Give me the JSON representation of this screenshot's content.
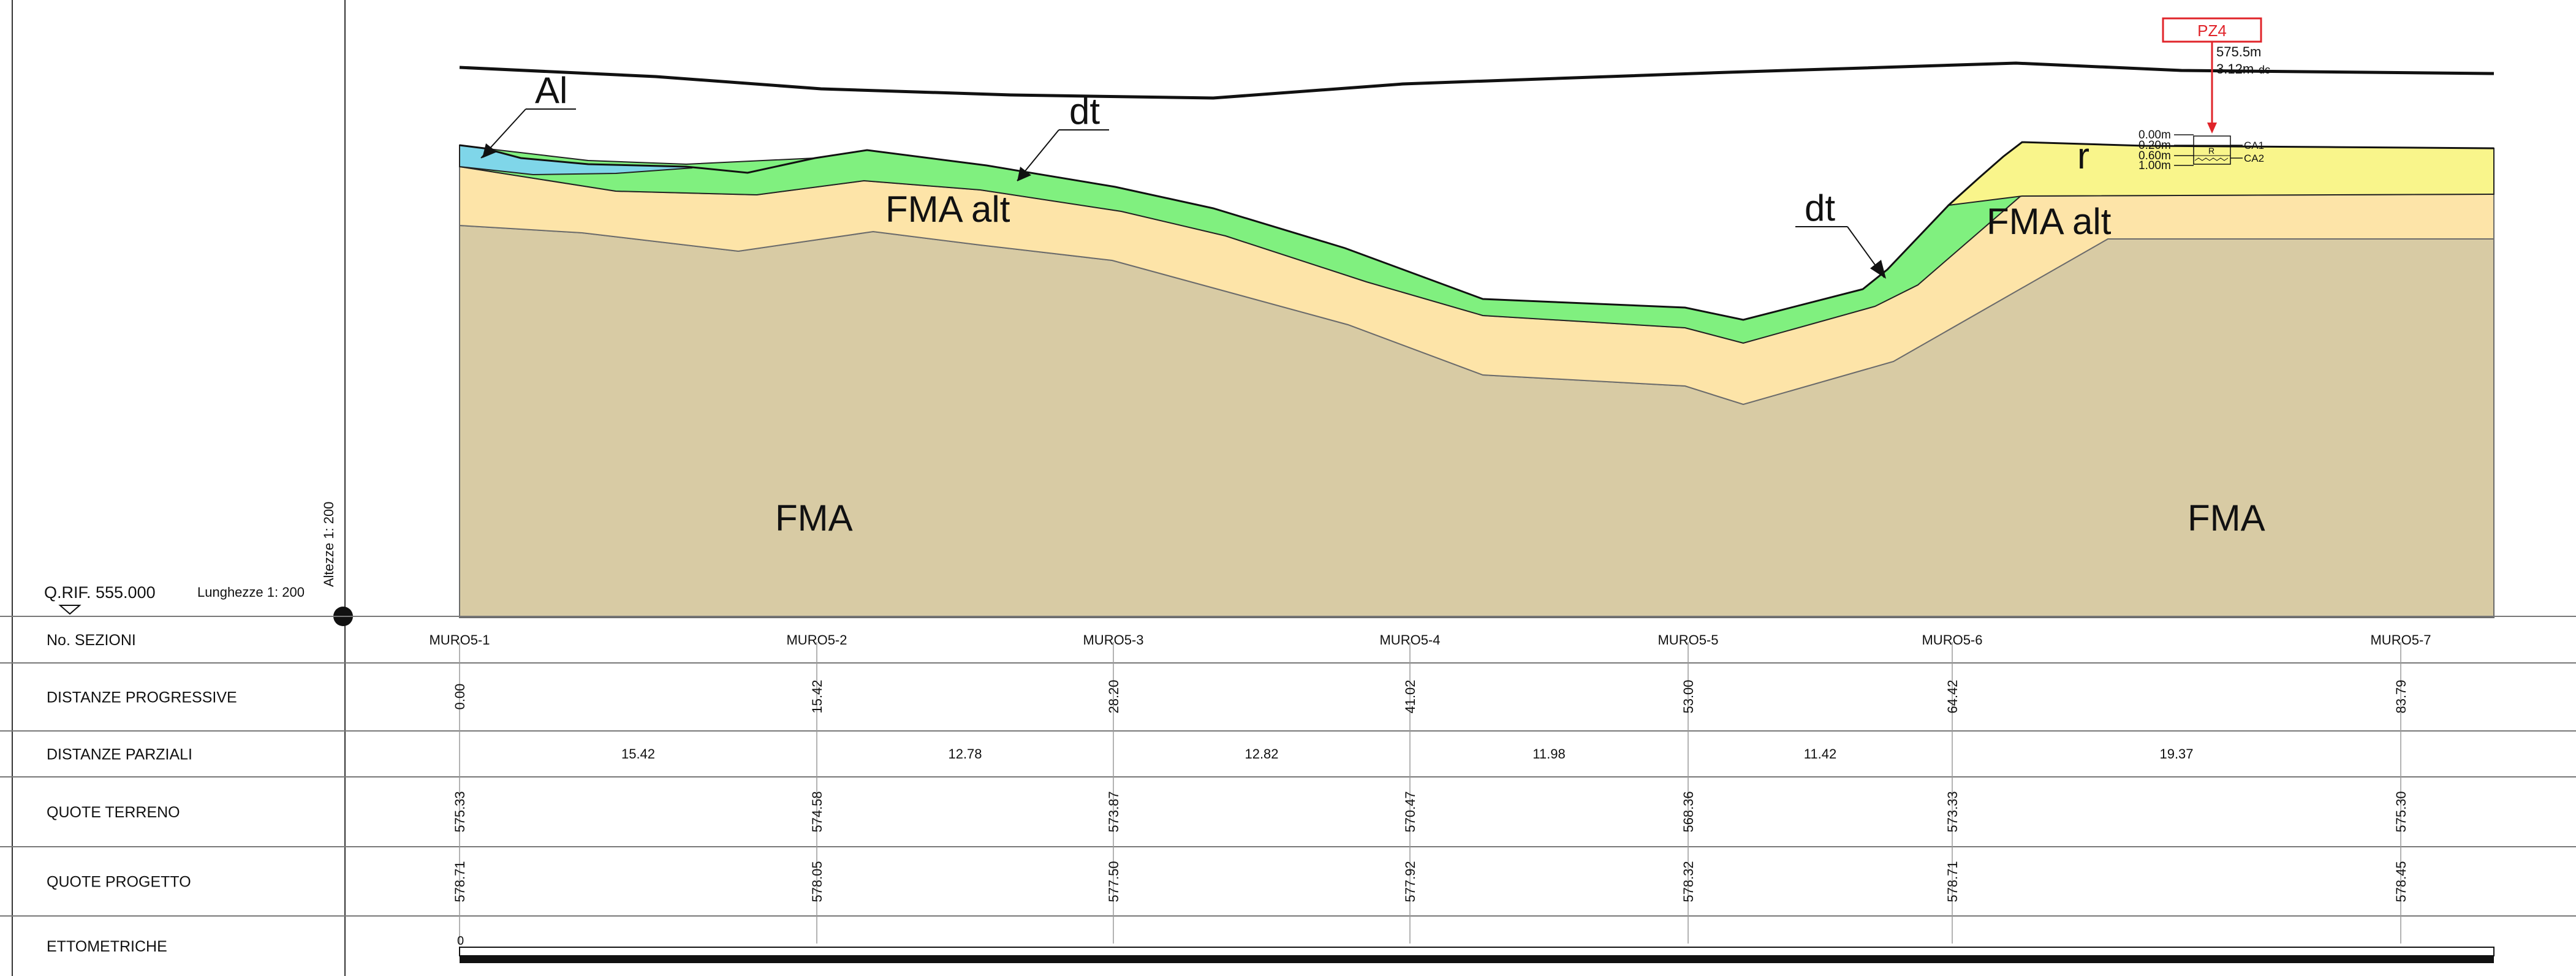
{
  "reference": {
    "quota_label": "Q.RIF. 555.000",
    "lengths_scale": "Lunghezze 1: 200",
    "heights_scale": "Altezze 1: 200"
  },
  "geology": {
    "units": [
      {
        "key": "FMA",
        "label": "FMA",
        "color": "#D8CBA4"
      },
      {
        "key": "FMA_alt",
        "label": "FMA alt",
        "color": "#FDE4A8"
      },
      {
        "key": "dt",
        "label": "dt",
        "color": "#80F07F"
      },
      {
        "key": "Al",
        "label": "Al",
        "color": "#7FD6E9"
      },
      {
        "key": "r",
        "label": "r",
        "color": "#F9F58B"
      }
    ]
  },
  "piezometer": {
    "id": "PZ4",
    "elevation": "575.5m",
    "depth": "3.12m",
    "depth_unit": "dc",
    "marker_color": "#E0242A",
    "log": {
      "depths": [
        "0.00m",
        "0.20m",
        "0.60m",
        "1.00m"
      ],
      "unit": "R",
      "samples": [
        "CA1",
        "CA2"
      ]
    }
  },
  "table": {
    "rows": [
      {
        "key": "sections",
        "label": "No. SEZIONI"
      },
      {
        "key": "progressive",
        "label": "DISTANZE PROGRESSIVE"
      },
      {
        "key": "partial",
        "label": "DISTANZE PARZIALI"
      },
      {
        "key": "terrain",
        "label": "QUOTE TERRENO"
      },
      {
        "key": "project",
        "label": "QUOTE PROGETTO"
      },
      {
        "key": "ettometriche",
        "label": "ETTOMETRICHE"
      }
    ],
    "sections": [
      "MURO5-1",
      "MURO5-2",
      "MURO5-3",
      "MURO5-4",
      "MURO5-5",
      "MURO5-6",
      "MURO5-7"
    ],
    "progressive": [
      "0.00",
      "15.42",
      "28.20",
      "41.02",
      "53.00",
      "64.42",
      "83.79"
    ],
    "partial": [
      "15.42",
      "12.78",
      "12.82",
      "11.98",
      "11.42",
      "19.37"
    ],
    "terrain": [
      "575.33",
      "574.58",
      "573.87",
      "570.47",
      "568.36",
      "573.33",
      "575.30"
    ],
    "project": [
      "578.71",
      "578.05",
      "577.50",
      "577.92",
      "578.32",
      "578.71",
      "578.45"
    ],
    "ettometriche": {
      "start": "0"
    }
  }
}
